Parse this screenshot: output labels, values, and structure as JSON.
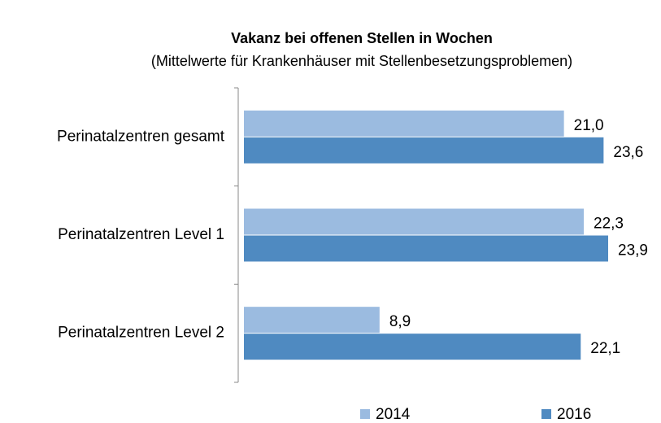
{
  "chart_data": {
    "type": "hbar",
    "title": "Vakanz bei offenen Stellen in Wochen",
    "subtitle": "(Mittelwerte für Krankenhäuser mit Stellenbesetzungsproblemen)",
    "categories": [
      "Perinatalzentren gesamt",
      "Perinatalzentren Level 1",
      "Perinatalzentren Level 2"
    ],
    "series": [
      {
        "name": "2014",
        "color": "#9bbbe0",
        "values": [
          21.0,
          22.3,
          8.9
        ],
        "value_labels": [
          "21,0",
          "22,3",
          "8,9"
        ]
      },
      {
        "name": "2016",
        "color": "#4f8ac1",
        "values": [
          23.6,
          23.9,
          22.1
        ],
        "value_labels": [
          "23,6",
          "23,9",
          "22,1"
        ]
      }
    ],
    "legend": "bottom"
  }
}
